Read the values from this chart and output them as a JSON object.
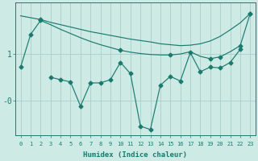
{
  "xlabel": "Humidex (Indice chaleur)",
  "bg_color": "#ceeae4",
  "line_color": "#1a7a6e",
  "grid_color": "#aacfc8",
  "ylim": [
    -0.75,
    2.1
  ],
  "xlim": [
    -0.5,
    23.5
  ],
  "ytick_vals": [
    0,
    1
  ],
  "ytick_labels": [
    "-0",
    "1"
  ],
  "x_all": [
    0,
    1,
    2,
    3,
    4,
    5,
    6,
    7,
    8,
    9,
    10,
    11,
    12,
    13,
    14,
    15,
    16,
    17,
    18,
    19,
    20,
    21,
    22,
    23
  ],
  "upper_top": [
    1.82,
    1.78,
    1.74,
    1.68,
    1.63,
    1.58,
    1.53,
    1.48,
    1.44,
    1.4,
    1.36,
    1.32,
    1.29,
    1.26,
    1.22,
    1.2,
    1.18,
    1.19,
    1.22,
    1.28,
    1.38,
    1.52,
    1.67,
    1.87
  ],
  "upper_top_markers": [
    2
  ],
  "upper_bot": [
    0.72,
    1.42,
    1.72,
    1.63,
    1.53,
    1.44,
    1.35,
    1.27,
    1.2,
    1.14,
    1.08,
    1.04,
    1.01,
    0.99,
    0.98,
    0.98,
    1.0,
    1.05,
    0.95,
    0.9,
    0.94,
    1.05,
    1.18,
    1.87
  ],
  "upper_bot_markers": [
    0,
    1,
    2,
    10,
    15,
    19,
    20,
    22,
    23
  ],
  "zigzag": {
    "x": [
      3,
      4,
      5,
      6,
      7,
      8,
      9,
      10,
      11,
      12,
      13,
      14,
      15,
      16,
      17,
      18,
      19,
      20,
      21,
      22
    ],
    "y": [
      0.5,
      0.45,
      0.4,
      -0.12,
      0.38,
      0.38,
      0.45,
      0.82,
      0.58,
      -0.55,
      -0.62,
      0.33,
      0.52,
      0.42,
      1.03,
      0.62,
      0.72,
      0.7,
      0.82,
      1.1
    ]
  },
  "dotted": {
    "x": [
      3,
      4,
      5,
      6,
      7,
      8,
      9
    ],
    "y": [
      0.5,
      0.45,
      0.4,
      -0.12,
      0.38,
      0.38,
      0.45
    ]
  },
  "marker_size": 2.5,
  "lw": 0.85
}
